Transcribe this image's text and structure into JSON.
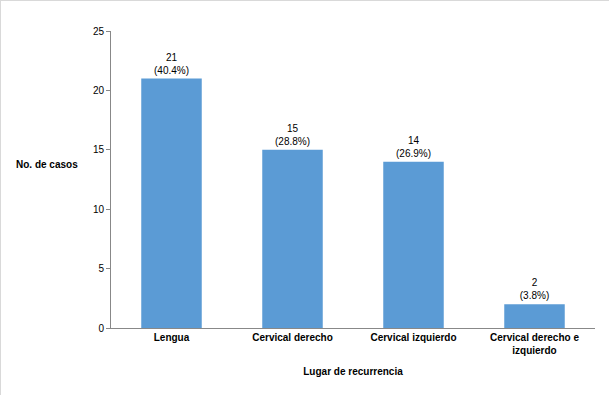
{
  "chart_data": {
    "type": "bar",
    "categories": [
      "Lengua",
      "Cervical derecho",
      "Cervical izquierdo",
      "Cervical derecho e izquierdo"
    ],
    "values": [
      21,
      15,
      14,
      2
    ],
    "value_labels": [
      "21\n(40.4%)",
      "15\n(28.8%)",
      "14\n(26.9%)",
      "2\n(3.8%)"
    ],
    "x_label": "Lugar de recurrencia",
    "y_label": "No. de casos",
    "color": "#5b9bd5",
    "ylim": [
      0,
      25
    ],
    "yticks": [
      0,
      5,
      10,
      15,
      20,
      25
    ],
    "grid": false,
    "data_labels": true
  }
}
